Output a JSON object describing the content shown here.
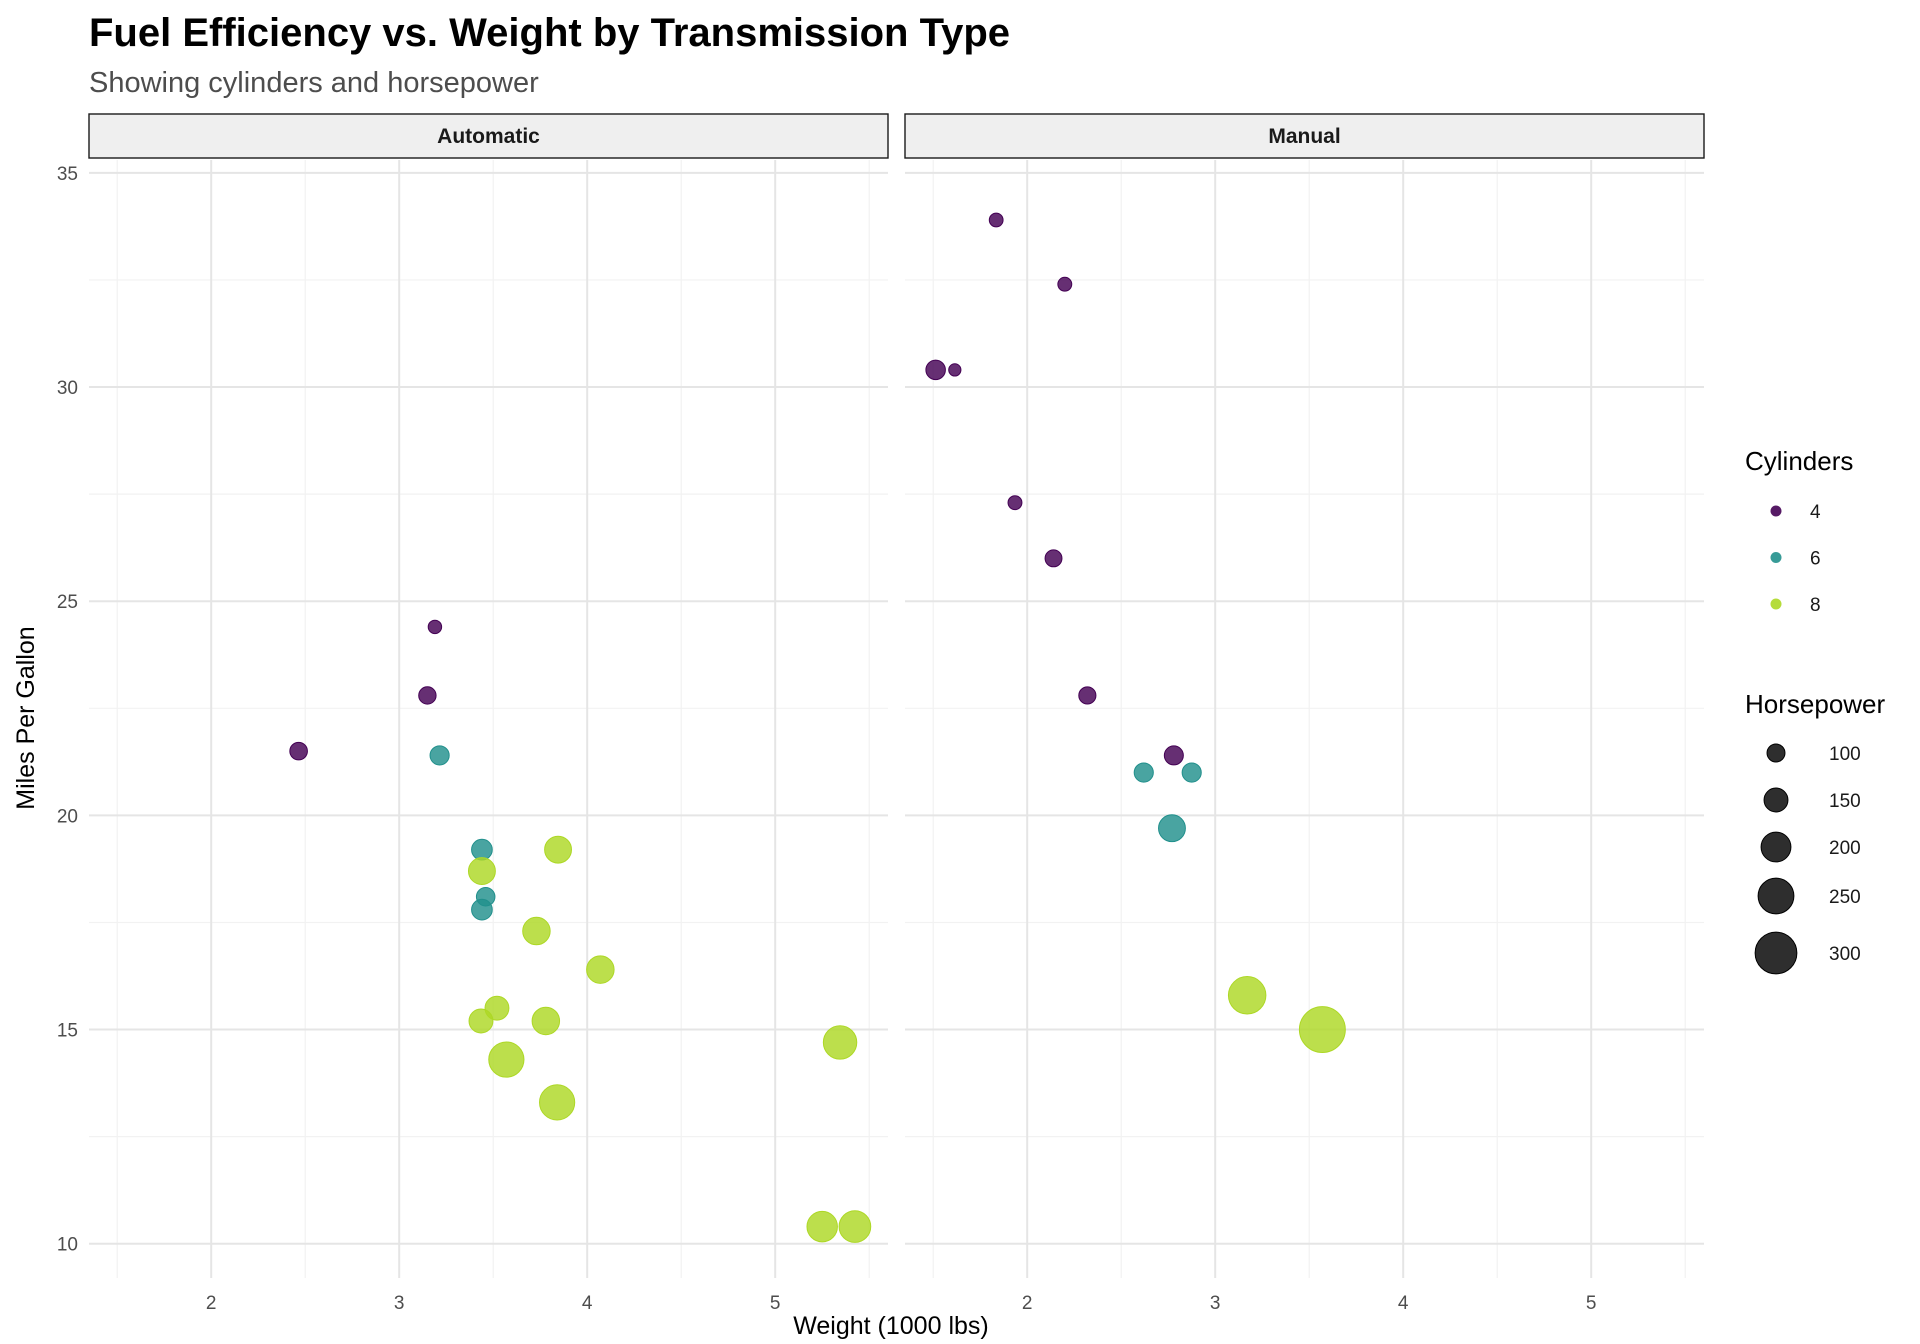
{
  "chart_data": {
    "type": "scatter",
    "title": "Fuel Efficiency vs. Weight by Transmission Type",
    "subtitle": "Showing cylinders and horsepower",
    "xlabel": "Weight (1000 lbs)",
    "ylabel": "Miles Per Gallon",
    "xlim": [
      1.35,
      5.6
    ],
    "ylim": [
      9.2,
      35.3
    ],
    "x_ticks": [
      2,
      3,
      4,
      5
    ],
    "y_ticks": [
      10,
      15,
      20,
      25,
      30,
      35
    ],
    "grid": true,
    "legend_position": "right",
    "colors": {
      "background": "#ffffff",
      "strip_fill": "#efefef",
      "grid_major": "#e5e5e5",
      "grid_minor": "#f2f2f2"
    },
    "facets": [
      {
        "label": "Automatic",
        "points": [
          {
            "wt": 2.465,
            "mpg": 21.5,
            "cyl": 4,
            "hp": 97
          },
          {
            "wt": 3.19,
            "mpg": 24.4,
            "cyl": 4,
            "hp": 62
          },
          {
            "wt": 3.15,
            "mpg": 22.8,
            "cyl": 4,
            "hp": 95
          },
          {
            "wt": 3.215,
            "mpg": 21.4,
            "cyl": 6,
            "hp": 110
          },
          {
            "wt": 3.44,
            "mpg": 19.2,
            "cyl": 6,
            "hp": 123
          },
          {
            "wt": 3.46,
            "mpg": 18.1,
            "cyl": 6,
            "hp": 105
          },
          {
            "wt": 3.44,
            "mpg": 17.8,
            "cyl": 6,
            "hp": 123
          },
          {
            "wt": 3.44,
            "mpg": 18.7,
            "cyl": 8,
            "hp": 175
          },
          {
            "wt": 3.845,
            "mpg": 19.2,
            "cyl": 8,
            "hp": 175
          },
          {
            "wt": 3.73,
            "mpg": 17.3,
            "cyl": 8,
            "hp": 180
          },
          {
            "wt": 4.07,
            "mpg": 16.4,
            "cyl": 8,
            "hp": 180
          },
          {
            "wt": 3.52,
            "mpg": 15.5,
            "cyl": 8,
            "hp": 150
          },
          {
            "wt": 3.435,
            "mpg": 15.2,
            "cyl": 8,
            "hp": 150
          },
          {
            "wt": 3.78,
            "mpg": 15.2,
            "cyl": 8,
            "hp": 180
          },
          {
            "wt": 3.57,
            "mpg": 14.3,
            "cyl": 8,
            "hp": 245
          },
          {
            "wt": 3.84,
            "mpg": 13.3,
            "cyl": 8,
            "hp": 245
          },
          {
            "wt": 5.345,
            "mpg": 14.7,
            "cyl": 8,
            "hp": 230
          },
          {
            "wt": 5.25,
            "mpg": 10.4,
            "cyl": 8,
            "hp": 205
          },
          {
            "wt": 5.424,
            "mpg": 10.4,
            "cyl": 8,
            "hp": 215
          }
        ]
      },
      {
        "label": "Manual",
        "points": [
          {
            "wt": 1.835,
            "mpg": 33.9,
            "cyl": 4,
            "hp": 65
          },
          {
            "wt": 2.2,
            "mpg": 32.4,
            "cyl": 4,
            "hp": 66
          },
          {
            "wt": 1.513,
            "mpg": 30.4,
            "cyl": 4,
            "hp": 113
          },
          {
            "wt": 1.615,
            "mpg": 30.4,
            "cyl": 4,
            "hp": 52
          },
          {
            "wt": 1.935,
            "mpg": 27.3,
            "cyl": 4,
            "hp": 66
          },
          {
            "wt": 2.14,
            "mpg": 26.0,
            "cyl": 4,
            "hp": 91
          },
          {
            "wt": 2.32,
            "mpg": 22.8,
            "cyl": 4,
            "hp": 93
          },
          {
            "wt": 2.78,
            "mpg": 21.4,
            "cyl": 4,
            "hp": 109
          },
          {
            "wt": 2.62,
            "mpg": 21.0,
            "cyl": 6,
            "hp": 110
          },
          {
            "wt": 2.875,
            "mpg": 21.0,
            "cyl": 6,
            "hp": 110
          },
          {
            "wt": 2.77,
            "mpg": 19.7,
            "cyl": 6,
            "hp": 175
          },
          {
            "wt": 3.17,
            "mpg": 15.8,
            "cyl": 8,
            "hp": 264
          },
          {
            "wt": 3.57,
            "mpg": 15.0,
            "cyl": 8,
            "hp": 335
          }
        ]
      }
    ],
    "legends": {
      "color": {
        "title": "Cylinders",
        "entries": [
          {
            "label": "4",
            "value": 4,
            "color": "#440154"
          },
          {
            "label": "6",
            "value": 6,
            "color": "#21908C"
          },
          {
            "label": "8",
            "value": 8,
            "color": "#ADD825"
          }
        ]
      },
      "size": {
        "title": "Horsepower",
        "entries": [
          {
            "label": "100",
            "value": 100
          },
          {
            "label": "150",
            "value": 150
          },
          {
            "label": "200",
            "value": 200
          },
          {
            "label": "250",
            "value": 250
          },
          {
            "label": "300",
            "value": 300
          }
        ]
      }
    }
  }
}
